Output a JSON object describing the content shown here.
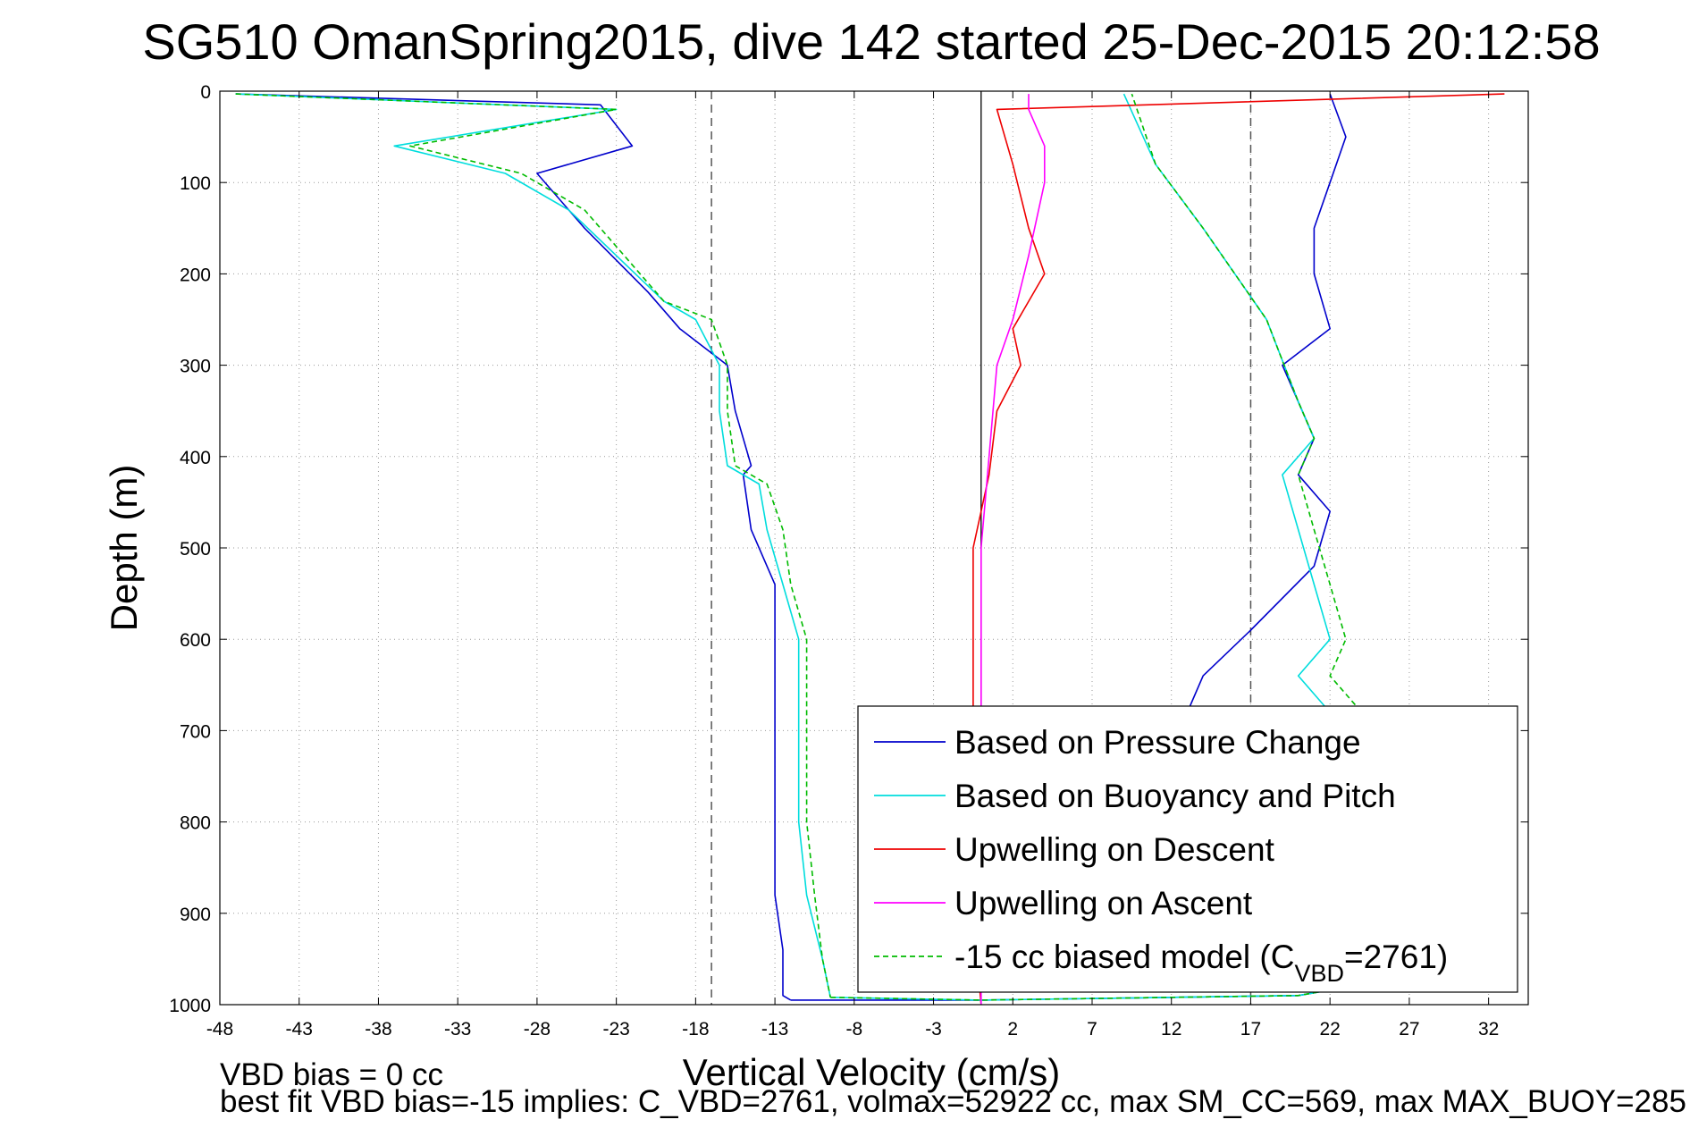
{
  "chart_data": {
    "type": "line",
    "title": "SG510 OmanSpring2015, dive 142 started 25-Dec-2015 20:12:58",
    "xlabel": "Vertical Velocity (cm/s)",
    "ylabel": "Depth (m)",
    "xlim": [
      -48,
      34.5
    ],
    "ylim": [
      0,
      1000
    ],
    "y_reversed": true,
    "x_ticks": [
      -48,
      -43,
      -38,
      -33,
      -28,
      -23,
      -18,
      -13,
      -8,
      -3,
      2,
      7,
      12,
      17,
      22,
      27,
      32
    ],
    "x_tick_labels": [
      "-48",
      "-43",
      "-38",
      "-33",
      "-28",
      "-23",
      "-18",
      "-13",
      "-8",
      "-3",
      "2",
      "7",
      "12",
      "17",
      "22",
      "27",
      "32"
    ],
    "y_ticks": [
      0,
      100,
      200,
      300,
      400,
      500,
      600,
      700,
      800,
      900,
      1000
    ],
    "y_tick_labels": [
      "0",
      "100",
      "200",
      "300",
      "400",
      "500",
      "600",
      "700",
      "800",
      "900",
      "1000"
    ],
    "grid": true,
    "vertical_reference_lines": [
      {
        "x": -17,
        "style": "dashed",
        "color": "#555555"
      },
      {
        "x": 0,
        "style": "solid",
        "color": "#222222"
      },
      {
        "x": 17,
        "style": "dashed",
        "color": "#555555"
      }
    ],
    "legend_position": "bottom-right",
    "series": [
      {
        "name": "Based on Pressure Change",
        "color": "#0000cc",
        "style": "solid",
        "segments": [
          {
            "x": [
              -47,
              -24,
              -22,
              -28,
              -25,
              -21,
              -19,
              -16,
              -15.5,
              -14.5,
              -15,
              -14.5,
              -13,
              -13,
              -13,
              -13,
              -13,
              -12.5,
              -12.5,
              -12
            ],
            "y": [
              3,
              15,
              60,
              90,
              150,
              220,
              260,
              300,
              350,
              410,
              420,
              480,
              540,
              600,
              700,
              800,
              880,
              940,
              990,
              995
            ]
          },
          {
            "x": [
              -12,
              0,
              20,
              30,
              15,
              13,
              14,
              17,
              21,
              22,
              20,
              21,
              20,
              19,
              22,
              21,
              21,
              22,
              23,
              22
            ],
            "y": [
              995,
              995,
              990,
              960,
              800,
              680,
              640,
              590,
              520,
              460,
              420,
              380,
              340,
              300,
              260,
              200,
              150,
              100,
              50,
              3
            ]
          }
        ]
      },
      {
        "name": "Based on Buoyancy and Pitch",
        "color": "#00dddd",
        "style": "solid",
        "segments": [
          {
            "x": [
              -47,
              -23,
              -37,
              -30,
              -26,
              -20,
              -18,
              -16.5,
              -16.5,
              -16,
              -14,
              -13.5,
              -12.5,
              -11.5,
              -11.5,
              -11.5,
              -11,
              -10,
              -9.5
            ],
            "y": [
              3,
              20,
              60,
              90,
              130,
              230,
              250,
              300,
              350,
              410,
              430,
              480,
              540,
              600,
              700,
              800,
              880,
              950,
              992
            ]
          },
          {
            "x": [
              -9.5,
              0,
              20,
              30,
              22,
              20,
              22,
              21,
              20,
              19,
              21,
              20,
              18,
              14,
              11,
              9
            ],
            "y": [
              992,
              995,
              990,
              960,
              680,
              640,
              600,
              540,
              480,
              420,
              380,
              340,
              250,
              150,
              80,
              3
            ]
          }
        ]
      },
      {
        "name": "Upwelling on Descent",
        "color": "#ee0000",
        "style": "solid",
        "segments": [
          {
            "x": [
              33,
              1,
              2,
              3,
              4,
              2,
              2.5,
              1,
              0.5,
              -0.5,
              -0.5,
              -0.5,
              -0.5,
              0
            ],
            "y": [
              3,
              20,
              80,
              150,
              200,
              260,
              300,
              350,
              420,
              500,
              600,
              700,
              900,
              1000
            ]
          }
        ]
      },
      {
        "name": "Upwelling on Ascent",
        "color": "#ff00ff",
        "style": "solid",
        "segments": [
          {
            "x": [
              0,
              0,
              0,
              0,
              0.5,
              1,
              2,
              3,
              4,
              4,
              3,
              3
            ],
            "y": [
              1000,
              900,
              700,
              500,
              400,
              300,
              250,
              180,
              100,
              60,
              20,
              3
            ]
          }
        ]
      },
      {
        "name": "-15 cc biased model (C_VBD=2761)",
        "color": "#00bb00",
        "style": "dashed",
        "segments": [
          {
            "x": [
              -47,
              -23,
              -36,
              -29,
              -25,
              -20,
              -17,
              -16,
              -16,
              -15.5,
              -13.5,
              -12.5,
              -12,
              -11,
              -11,
              -11,
              -10.5,
              -10,
              -9.5
            ],
            "y": [
              3,
              20,
              60,
              90,
              130,
              230,
              250,
              300,
              350,
              410,
              430,
              480,
              540,
              600,
              700,
              800,
              880,
              950,
              992
            ]
          },
          {
            "x": [
              -9.5,
              0,
              20,
              30,
              24,
              22,
              23,
              22,
              21,
              20,
              21,
              20,
              18,
              14,
              11,
              9.5
            ],
            "y": [
              992,
              995,
              990,
              960,
              680,
              640,
              600,
              540,
              480,
              420,
              380,
              340,
              250,
              150,
              80,
              3
            ]
          }
        ]
      }
    ],
    "legend": [
      {
        "main": "Based on Pressure Change",
        "color": "#0000cc",
        "style": "solid"
      },
      {
        "main": "Based on Buoyancy and Pitch",
        "color": "#00dddd",
        "style": "solid"
      },
      {
        "main": "Upwelling on Descent",
        "color": "#ee0000",
        "style": "solid"
      },
      {
        "main": "Upwelling on Ascent",
        "color": "#ff00ff",
        "style": "solid"
      },
      {
        "main": "-15 cc biased model (C",
        "sub": "VBD",
        "tail": "=2761)",
        "color": "#00bb00",
        "style": "dashed"
      }
    ],
    "annotations": [
      "VBD bias = 0 cc",
      "best fit VBD bias=-15 implies: C_VBD=2761, volmax=52922 cc, max SM_CC=569, max MAX_BUOY=285"
    ]
  }
}
